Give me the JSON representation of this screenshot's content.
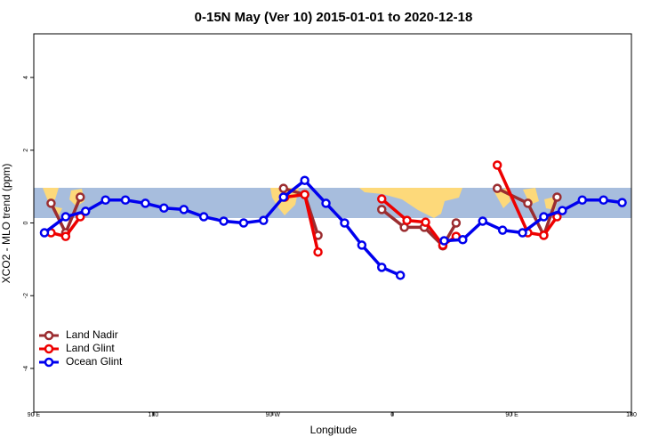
{
  "chart_data": {
    "type": "line",
    "title": "0-15N May (Ver 10)   2015-01-01 to 2020-12-18",
    "x_label": "Longitude",
    "y_label": "XCO2 - MLO trend (ppm)",
    "xlim": [
      90,
      540
    ],
    "xticks": [
      {
        "value": 90,
        "label": "90 E"
      },
      180,
      {
        "value": 270,
        "label": "90 W"
      },
      {
        "value": 360,
        "label": "0"
      },
      {
        "value": 450,
        "label": "90 E"
      },
      {
        "value": 540,
        "label": "180"
      }
    ],
    "ylim": [
      -5.2,
      5.2
    ],
    "yticks": [
      -4,
      -2,
      0,
      2,
      4
    ],
    "legend": "bottom-left",
    "series": [
      {
        "name": "Land Nadir",
        "color": "#9b2d30",
        "x": [
          103,
          114,
          125,
          null,
          278,
          294,
          304,
          null,
          352,
          369,
          384,
          398,
          408,
          null,
          439,
          462,
          474,
          484
        ],
        "values": [
          0.54,
          -0.27,
          0.71,
          null,
          0.95,
          0.78,
          -0.34,
          null,
          0.37,
          -0.12,
          -0.12,
          -0.63,
          0.0,
          null,
          0.95,
          0.54,
          -0.34,
          0.71
        ]
      },
      {
        "name": "Land Glint",
        "color": "#ee0000",
        "x": [
          103,
          114,
          125,
          null,
          279,
          294,
          304,
          null,
          352,
          371,
          385,
          398,
          408,
          null,
          439,
          462,
          474,
          484
        ],
        "values": [
          -0.27,
          -0.37,
          0.17,
          null,
          0.71,
          0.78,
          -0.8,
          null,
          0.66,
          0.07,
          0.02,
          -0.61,
          -0.37,
          null,
          1.59,
          -0.27,
          -0.34,
          0.17
        ]
      },
      {
        "name": "Ocean Glint",
        "color": "#0000ee",
        "x": [
          98,
          114,
          129,
          144,
          159,
          174,
          188,
          203,
          218,
          233,
          248,
          263,
          278,
          294,
          310,
          324,
          337,
          352,
          366,
          null,
          399,
          413,
          428,
          443,
          458,
          474,
          488,
          503,
          519,
          533
        ],
        "values": [
          -0.27,
          0.17,
          0.32,
          0.63,
          0.63,
          0.54,
          0.41,
          0.37,
          0.17,
          0.05,
          0.0,
          0.07,
          0.71,
          1.17,
          0.54,
          0.0,
          -0.61,
          -1.22,
          -1.44,
          null,
          -0.49,
          -0.46,
          0.05,
          -0.2,
          -0.27,
          0.17,
          0.34,
          0.63,
          0.63,
          0.56
        ]
      }
    ]
  }
}
